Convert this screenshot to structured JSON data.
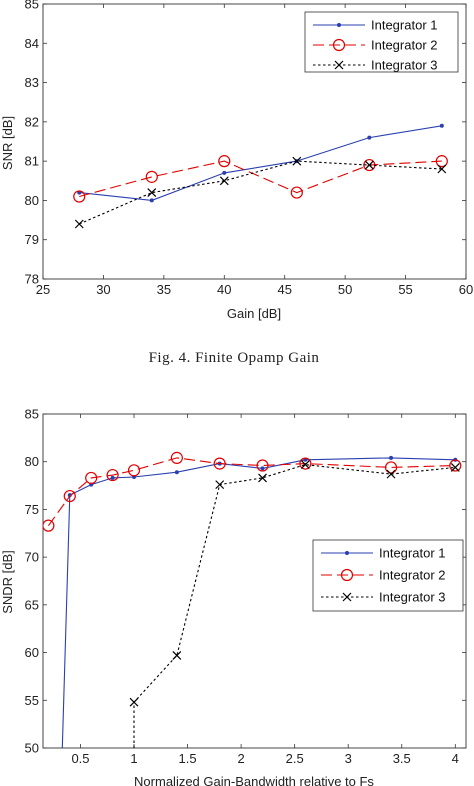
{
  "caption": "Fig. 4.   Finite Opamp Gain",
  "colors": {
    "series1": "#2a3fb0",
    "series2": "#e00000",
    "series3": "#000000"
  },
  "chart_data": [
    {
      "type": "line",
      "xlabel": "Gain [dB]",
      "ylabel": "SNR [dB]",
      "xlim": [
        25,
        60
      ],
      "ylim": [
        78,
        85
      ],
      "xticks": [
        25,
        30,
        35,
        40,
        45,
        50,
        55,
        60
      ],
      "yticks": [
        78,
        79,
        80,
        81,
        82,
        83,
        84,
        85
      ],
      "legend_position": "top-right",
      "series": [
        {
          "name": "Integrator 1",
          "marker": "dot",
          "style": "solid",
          "x": [
            28,
            34,
            40,
            46,
            52,
            58
          ],
          "y": [
            80.2,
            80.0,
            80.7,
            81.0,
            81.6,
            81.9
          ]
        },
        {
          "name": "Integrator 2",
          "marker": "circle",
          "style": "dashed",
          "x": [
            28,
            34,
            40,
            46,
            52,
            58
          ],
          "y": [
            80.1,
            80.6,
            81.0,
            80.2,
            80.9,
            81.0
          ]
        },
        {
          "name": "Integrator 3",
          "marker": "x",
          "style": "dotted",
          "x": [
            28,
            34,
            40,
            46,
            52,
            58
          ],
          "y": [
            79.4,
            80.2,
            80.5,
            81.0,
            80.9,
            80.8
          ]
        }
      ]
    },
    {
      "type": "line",
      "xlabel": "Normalized Gain-Bandwidth relative to Fs",
      "ylabel": "SNDR [dB]",
      "xlim": [
        0.15,
        4.1
      ],
      "ylim": [
        50,
        85
      ],
      "xticks": [
        0.5,
        1,
        1.5,
        2,
        2.5,
        3,
        3.5,
        4
      ],
      "yticks": [
        50,
        55,
        60,
        65,
        70,
        75,
        80,
        85
      ],
      "legend_position": "right",
      "series": [
        {
          "name": "Integrator 1",
          "marker": "dot",
          "style": "solid",
          "x": [
            0.33,
            0.4,
            0.6,
            0.8,
            1.0,
            1.4,
            1.8,
            2.2,
            2.6,
            3.4,
            4.0
          ],
          "y": [
            50,
            76.5,
            77.6,
            78.3,
            78.4,
            78.9,
            79.8,
            79.3,
            80.2,
            80.4,
            80.2
          ]
        },
        {
          "name": "Integrator 2",
          "marker": "circle",
          "style": "dashed",
          "x": [
            0.2,
            0.4,
            0.6,
            0.8,
            1.0,
            1.4,
            1.8,
            2.2,
            2.6,
            3.4,
            4.0
          ],
          "y": [
            73.3,
            76.4,
            78.3,
            78.6,
            79.1,
            80.4,
            79.8,
            79.6,
            79.8,
            79.4,
            79.6
          ]
        },
        {
          "name": "Integrator 3",
          "marker": "x",
          "style": "dotted",
          "x": [
            1.0,
            1.0,
            1.4,
            1.8,
            2.2,
            2.6,
            3.4,
            4.0
          ],
          "y": [
            50,
            54.8,
            59.7,
            77.6,
            78.3,
            79.7,
            78.7,
            79.4
          ]
        }
      ]
    }
  ]
}
